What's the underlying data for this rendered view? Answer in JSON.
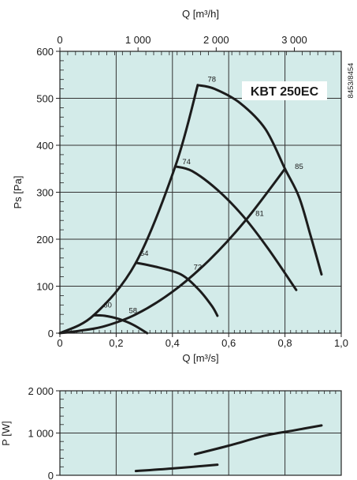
{
  "chart_data": [
    {
      "type": "line",
      "title": "KBT 250EC",
      "code": "8453/8454",
      "xlabel": "Q [m³/s]",
      "ylabel": "Ps [Pa]",
      "x2label": "Q [m³/h]",
      "xlim": [
        0,
        1.0
      ],
      "ylim": [
        0,
        600
      ],
      "x2lim": [
        0,
        3600
      ],
      "grid": true,
      "x_ticks": [
        0,
        0.2,
        0.4,
        0.6,
        0.8,
        1.0
      ],
      "x_tick_labels": [
        "0",
        "0,2",
        "0,4",
        "0,6",
        "0,8",
        "1,0"
      ],
      "x2_ticks": [
        0,
        1000,
        2000,
        3000
      ],
      "x2_tick_labels": [
        "0",
        "1 000",
        "2 000",
        "3 000"
      ],
      "y_ticks": [
        0,
        100,
        200,
        300,
        400,
        500,
        600
      ],
      "y_tick_labels": [
        "0",
        "100",
        "200",
        "300",
        "400",
        "500",
        "600"
      ],
      "fan_curves": [
        {
          "points": [
            [
              0.12,
              38
            ],
            [
              0.16,
              37
            ],
            [
              0.21,
              30
            ],
            [
              0.26,
              18
            ],
            [
              0.31,
              0
            ]
          ]
        },
        {
          "points": [
            [
              0.27,
              150
            ],
            [
              0.35,
              140
            ],
            [
              0.43,
              125
            ],
            [
              0.49,
              95
            ],
            [
              0.54,
              58
            ],
            [
              0.56,
              37
            ]
          ]
        },
        {
          "points": [
            [
              0.41,
              355
            ],
            [
              0.47,
              345
            ],
            [
              0.56,
              305
            ],
            [
              0.65,
              250
            ],
            [
              0.74,
              180
            ],
            [
              0.84,
              92
            ]
          ]
        },
        {
          "points": [
            [
              0.49,
              528
            ],
            [
              0.55,
              520
            ],
            [
              0.64,
              490
            ],
            [
              0.73,
              435
            ],
            [
              0.8,
              350
            ],
            [
              0.85,
              290
            ],
            [
              0.89,
              210
            ],
            [
              0.93,
              125
            ]
          ]
        }
      ],
      "system_curves": [
        {
          "points": [
            [
              0,
              0
            ],
            [
              0.12,
              38
            ],
            [
              0.27,
              150
            ],
            [
              0.41,
              355
            ],
            [
              0.49,
              528
            ]
          ]
        },
        {
          "points": [
            [
              0,
              0
            ],
            [
              0.07,
              5
            ],
            [
              0.16,
              15
            ],
            [
              0.27,
              40
            ],
            [
              0.4,
              88
            ],
            [
              0.53,
              155
            ],
            [
              0.66,
              240
            ],
            [
              0.8,
              350
            ]
          ]
        }
      ],
      "point_labels": [
        {
          "text": "78",
          "x": 0.54,
          "y": 535
        },
        {
          "text": "74",
          "x": 0.45,
          "y": 360
        },
        {
          "text": "85",
          "x": 0.85,
          "y": 350
        },
        {
          "text": "81",
          "x": 0.71,
          "y": 250
        },
        {
          "text": "64",
          "x": 0.3,
          "y": 165
        },
        {
          "text": "73",
          "x": 0.49,
          "y": 135
        },
        {
          "text": "60",
          "x": 0.17,
          "y": 55
        },
        {
          "text": "58",
          "x": 0.26,
          "y": 43
        }
      ]
    },
    {
      "type": "line",
      "ylabel": "P [W]",
      "xlim": [
        0,
        1.0
      ],
      "ylim": [
        0,
        2000
      ],
      "y_ticks": [
        0,
        1000,
        2000
      ],
      "y_tick_labels": [
        "0",
        "1 000",
        "2 000"
      ],
      "grid": true,
      "series": [
        {
          "points": [
            [
              0.27,
              100
            ],
            [
              0.4,
              160
            ],
            [
              0.56,
              250
            ]
          ]
        },
        {
          "points": [
            [
              0.48,
              500
            ],
            [
              0.6,
              700
            ],
            [
              0.73,
              940
            ],
            [
              0.83,
              1060
            ],
            [
              0.93,
              1180
            ]
          ]
        }
      ]
    }
  ]
}
